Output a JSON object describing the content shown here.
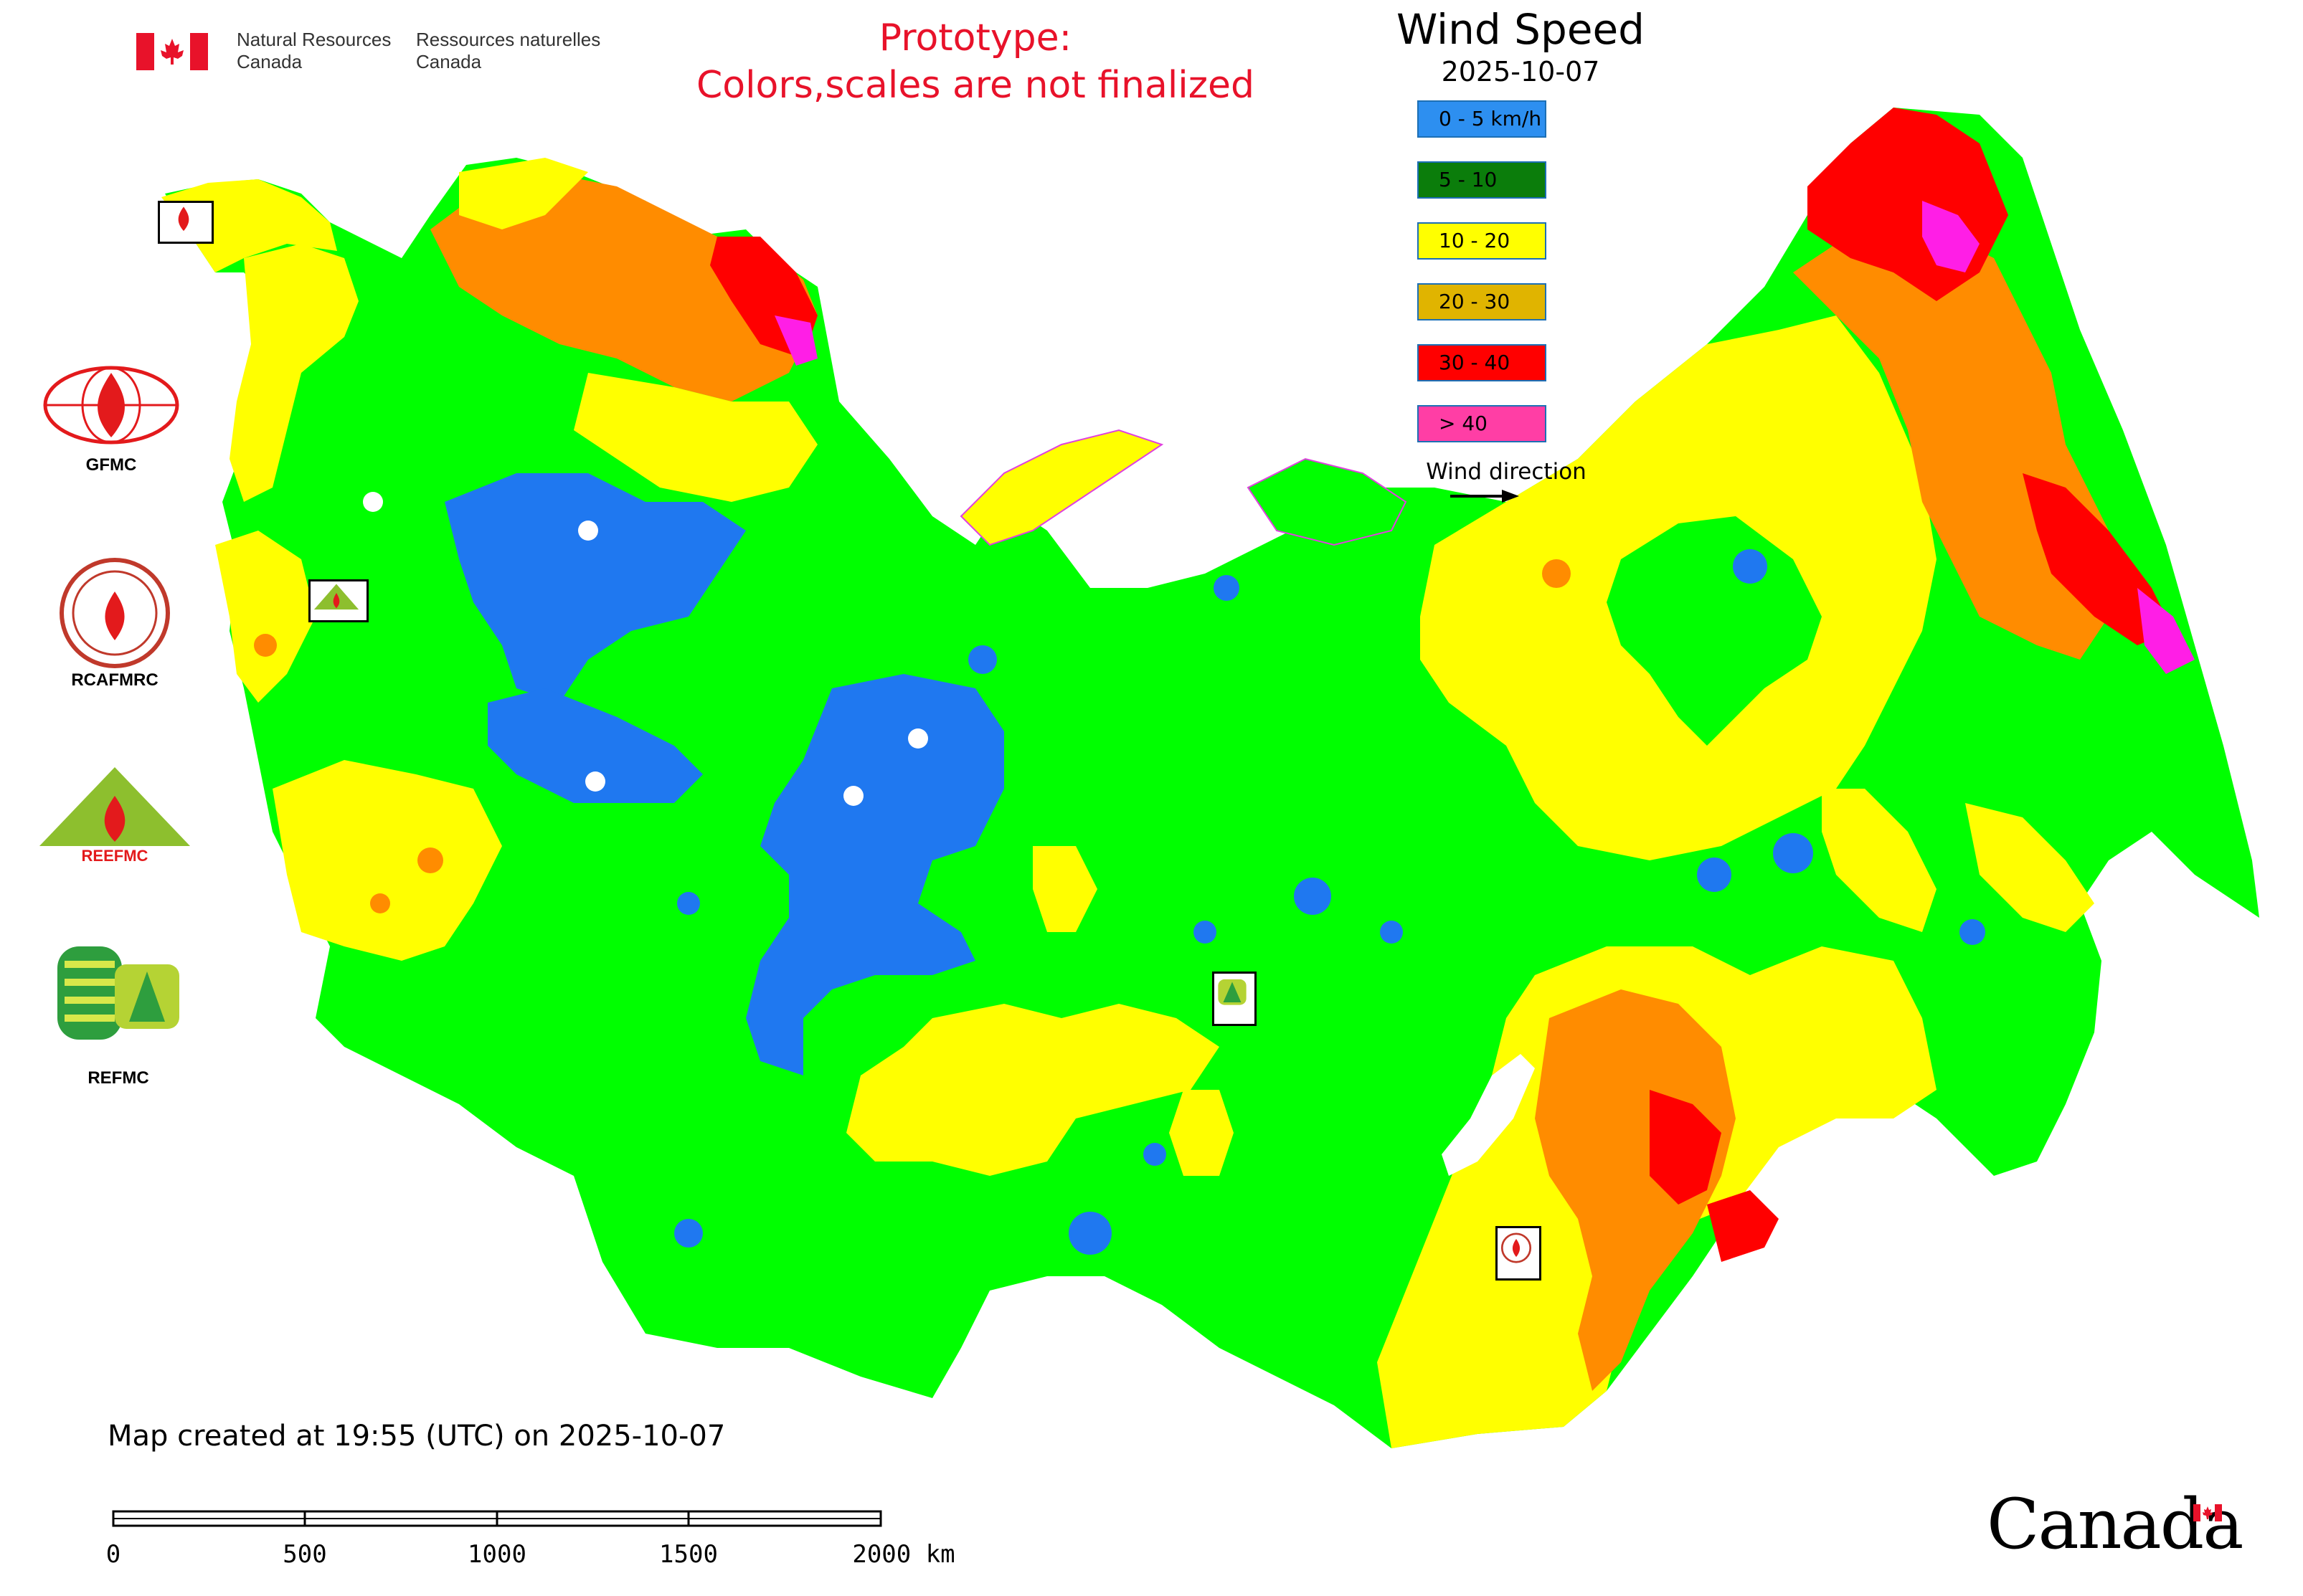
{
  "header": {
    "org_en": "Natural Resources\nCanada",
    "org_fr": "Ressources naturelles\nCanada",
    "notice_line1": "Prototype:",
    "notice_line2": "Colors,scales are not finalized"
  },
  "legend": {
    "title": "Wind Speed",
    "date": "2025-10-07",
    "items": [
      {
        "label": "0 - 5 km/h",
        "color": "#2d8ff0"
      },
      {
        "label": "5 - 10",
        "color": "#0b7d0b"
      },
      {
        "label": "10 - 20",
        "color": "#ffff00"
      },
      {
        "label": "20 - 30",
        "color": "#e0b400"
      },
      {
        "label": "30 - 40",
        "color": "#ff0000"
      },
      {
        "label": "> 40",
        "color": "#ff3ea5"
      }
    ],
    "wind_direction_label": "Wind direction"
  },
  "map_colors": {
    "green": "#00ff00",
    "blue": "#1f78f0",
    "yellow": "#ffff00",
    "orange": "#ff8c00",
    "red": "#ff0000",
    "magenta": "#ff1ee6",
    "white": "#ffffff"
  },
  "centers": [
    {
      "name": "GFMC",
      "icon": "gfmc-logo"
    },
    {
      "name": "RCAFMRC",
      "icon": "rcafmrc-logo"
    },
    {
      "name": "REEFMC",
      "icon": "reefmc-logo"
    },
    {
      "name": "REFMC",
      "icon": "refmc-logo"
    }
  ],
  "footer": {
    "map_created": "Map created at 19:55 (UTC) on 2025-10-07",
    "scale_labels": [
      "0",
      "500",
      "1000",
      "1500",
      "2000 km"
    ],
    "wordmark": "Canada"
  }
}
